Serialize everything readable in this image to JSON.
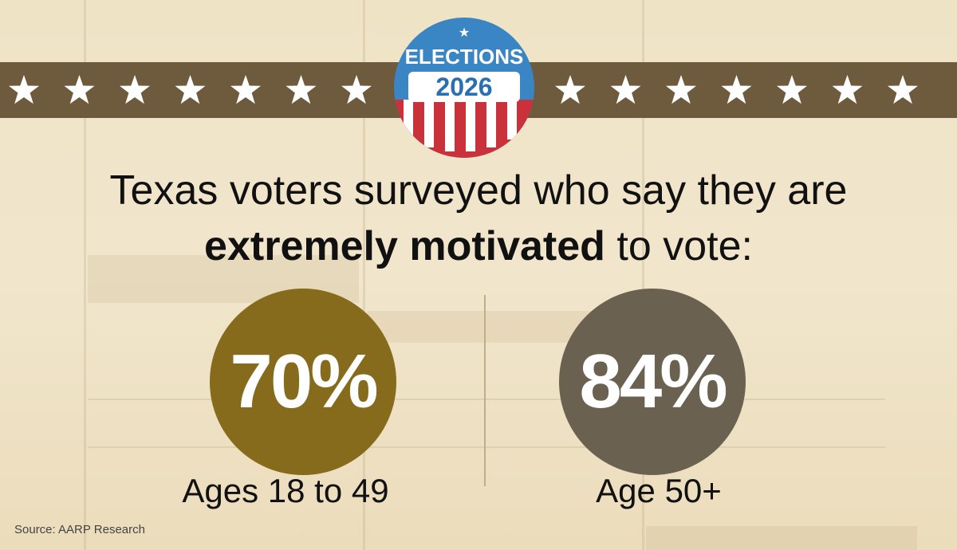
{
  "badge": {
    "top": "ELECTIONS",
    "year": "2026"
  },
  "headline": {
    "before": "Texas voters surveyed who say they are",
    "emphasis": "extremely motivated",
    "after": "to vote:"
  },
  "stats": [
    {
      "value": "70%",
      "label": "Ages 18 to 49"
    },
    {
      "value": "84%",
      "label": "Age 50+"
    }
  ],
  "source": "Source: AARP Research"
}
